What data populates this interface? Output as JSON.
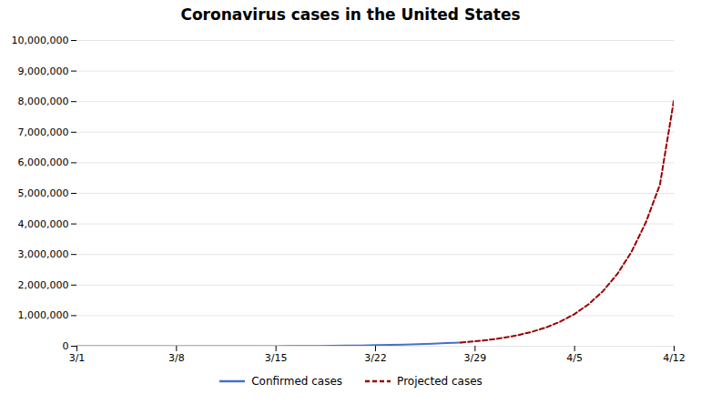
{
  "chart_data": {
    "type": "line",
    "title": "Coronavirus cases in the United States",
    "xlim": [
      0,
      42
    ],
    "xticks": [
      {
        "value": 0,
        "label": "3/1"
      },
      {
        "value": 7,
        "label": "3/8"
      },
      {
        "value": 14,
        "label": "3/15"
      },
      {
        "value": 21,
        "label": "3/22"
      },
      {
        "value": 28,
        "label": "3/29"
      },
      {
        "value": 35,
        "label": "4/5"
      },
      {
        "value": 42,
        "label": "4/12"
      }
    ],
    "ylim": [
      0,
      10000000
    ],
    "yticks": [
      0,
      {
        "value": 1000000,
        "label": "1,000,000"
      },
      {
        "value": 2000000,
        "label": "2,000,000"
      },
      {
        "value": 3000000,
        "label": "3,000,000"
      },
      {
        "value": 4000000,
        "label": "4,000,000"
      },
      {
        "value": 5000000,
        "label": "5,000,000"
      },
      {
        "value": 6000000,
        "label": "6,000,000"
      },
      {
        "value": 7000000,
        "label": "7,000,000"
      },
      {
        "value": 8000000,
        "label": "8,000,000"
      },
      {
        "value": 9000000,
        "label": "9,000,000"
      },
      {
        "value": 10000000,
        "label": "10,000,000"
      }
    ],
    "grid": "y",
    "legend": "bottom",
    "series": [
      {
        "name": "Confirmed cases",
        "color": "#4472c4",
        "line_style": "solid",
        "x": [
          0,
          1,
          2,
          3,
          4,
          5,
          6,
          7,
          8,
          9,
          10,
          11,
          12,
          13,
          14,
          15,
          16,
          17,
          18,
          19,
          20,
          21,
          22,
          23,
          24,
          25,
          26,
          27
        ],
        "values": [
          74,
          100,
          125,
          156,
          221,
          319,
          435,
          541,
          704,
          994,
          1301,
          1630,
          2183,
          2770,
          3613,
          4661,
          6421,
          9415,
          13677,
          19551,
          24583,
          33546,
          43734,
          53740,
          65778,
          83836,
          101657,
          122653
        ]
      },
      {
        "name": "Projected cases",
        "color": "#990000",
        "line_style": "dashed",
        "x": [
          27,
          28,
          29,
          30,
          31,
          32,
          33,
          34,
          35,
          36,
          37,
          38,
          39,
          40,
          41,
          42
        ],
        "values": [
          122653,
          160530,
          210000,
          275000,
          360000,
          471000,
          616000,
          806000,
          1054000,
          1379000,
          1804000,
          2360000,
          3087000,
          4039000,
          5285000,
          8100000
        ]
      }
    ]
  }
}
